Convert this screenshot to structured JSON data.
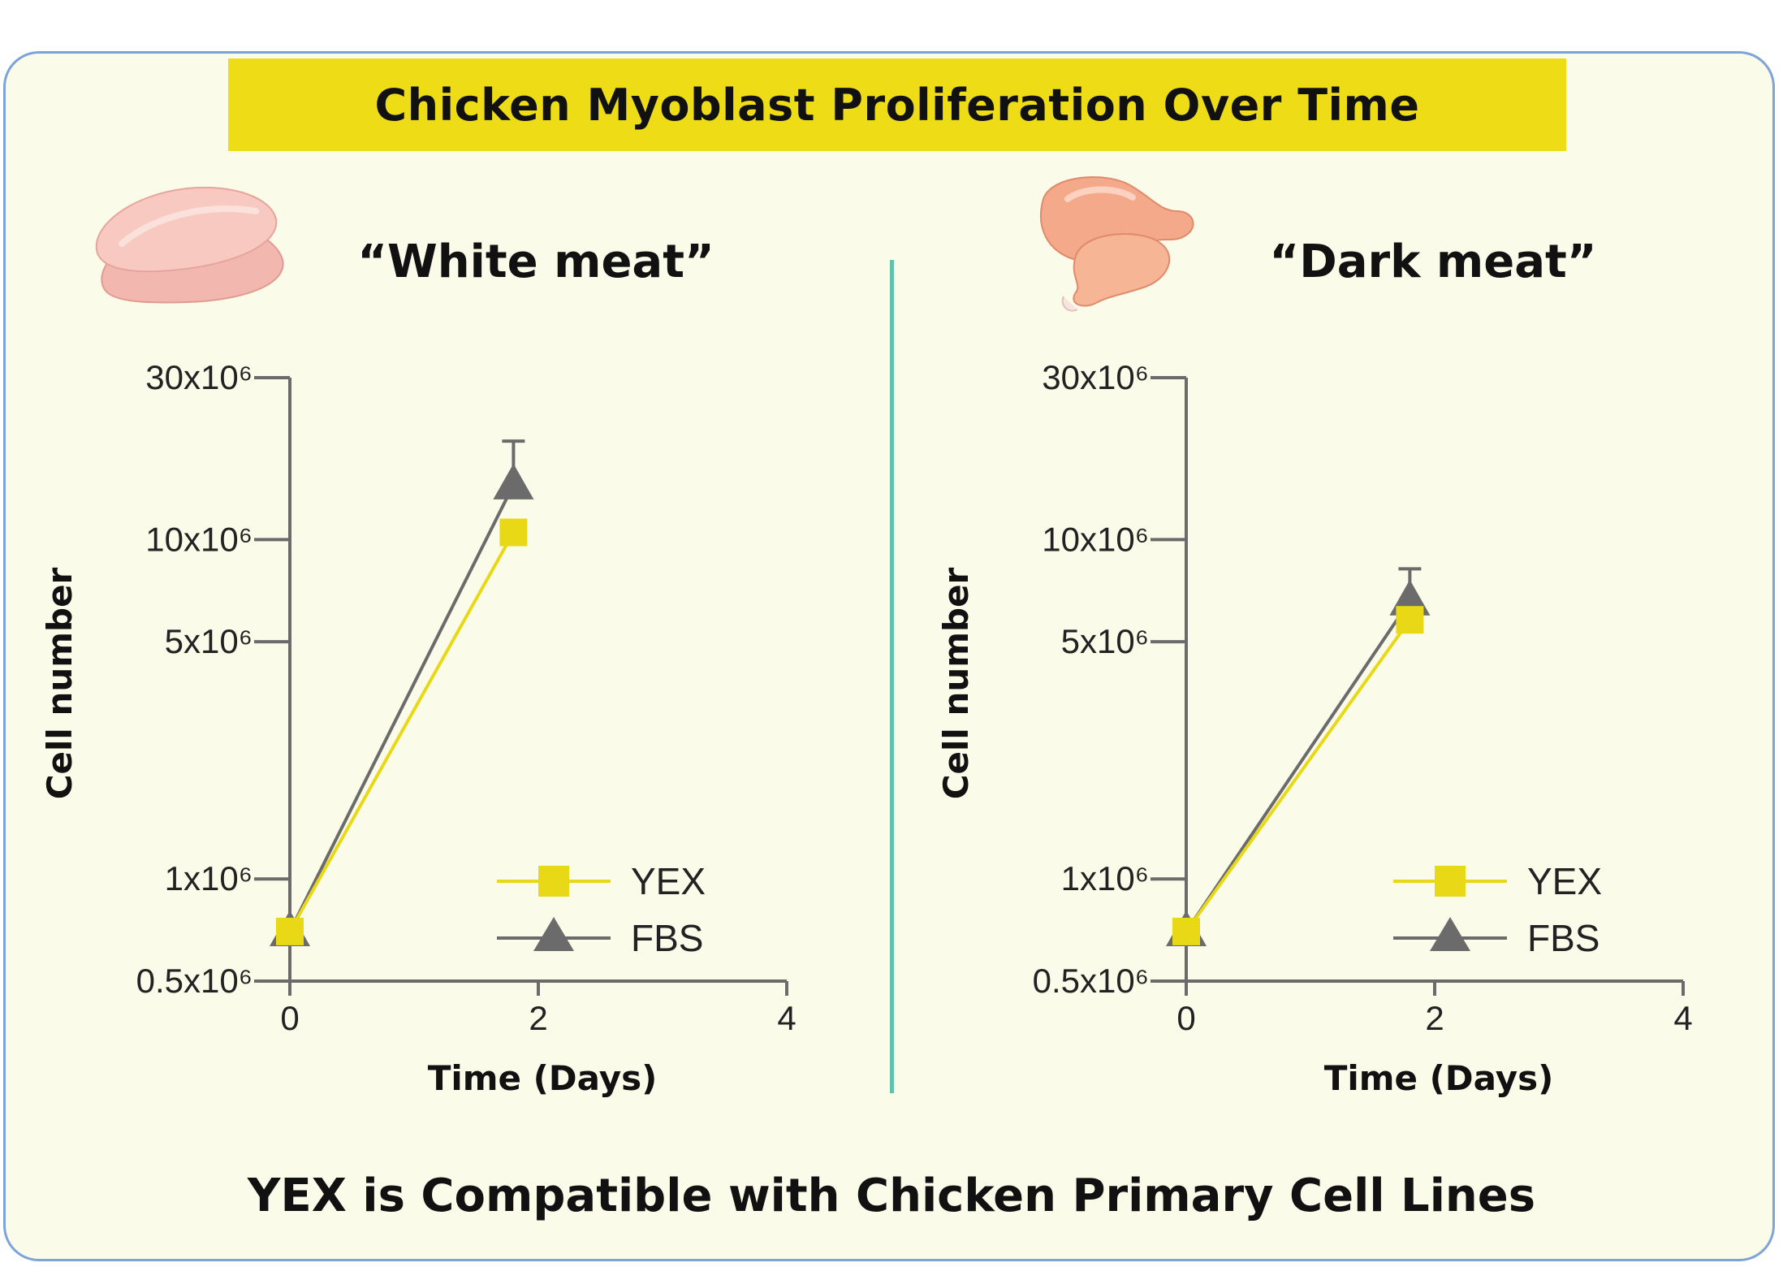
{
  "title": "Chicken Myoblast Proliferation Over Time",
  "footer": "YEX is Compatible with Chicken Primary Cell Lines",
  "colors": {
    "yex": "#e8d816",
    "fbs": "#6b6b6b",
    "title_bar": "#eedd16",
    "divider": "#5ec3a9"
  },
  "icons": {
    "white": "chicken-breast-icon",
    "dark": "chicken-drumstick-icon"
  },
  "chart_data": [
    {
      "type": "line",
      "title": "“White meat”",
      "xlabel": "Time (Days)",
      "ylabel": "Cell number",
      "y_scale": "log",
      "xlim": [
        0,
        4
      ],
      "ylim": [
        0.5,
        30
      ],
      "x_ticks": [
        "0",
        "2",
        "4"
      ],
      "y_ticks": [
        {
          "value": 30,
          "label": "30x10⁶"
        },
        {
          "value": 10,
          "label": "10x10⁶"
        },
        {
          "value": 5,
          "label": "5x10⁶"
        },
        {
          "value": 1,
          "label": "1x10⁶"
        },
        {
          "value": 0.5,
          "label": "0.5x10⁶"
        }
      ],
      "series": [
        {
          "name": "YEX",
          "marker": "square",
          "x": [
            0,
            1.8
          ],
          "y": [
            0.7,
            10.5
          ]
        },
        {
          "name": "FBS",
          "marker": "triangle",
          "x": [
            0,
            1.8
          ],
          "y": [
            0.7,
            14.5
          ],
          "error_upper": [
            null,
            19.5
          ]
        }
      ],
      "legend": "bottom-right"
    },
    {
      "type": "line",
      "title": "“Dark meat”",
      "xlabel": "Time (Days)",
      "ylabel": "Cell number",
      "y_scale": "log",
      "xlim": [
        0,
        4
      ],
      "ylim": [
        0.5,
        30
      ],
      "x_ticks": [
        "0",
        "2",
        "4"
      ],
      "y_ticks": [
        {
          "value": 30,
          "label": "30x10⁶"
        },
        {
          "value": 10,
          "label": "10x10⁶"
        },
        {
          "value": 5,
          "label": "5x10⁶"
        },
        {
          "value": 1,
          "label": "1x10⁶"
        },
        {
          "value": 0.5,
          "label": "0.5x10⁶"
        }
      ],
      "series": [
        {
          "name": "YEX",
          "marker": "square",
          "x": [
            0,
            1.8
          ],
          "y": [
            0.7,
            5.8
          ]
        },
        {
          "name": "FBS",
          "marker": "triangle",
          "x": [
            0,
            1.8
          ],
          "y": [
            0.7,
            6.6
          ],
          "error_upper": [
            null,
            8.2
          ]
        }
      ],
      "legend": "bottom-right"
    }
  ]
}
